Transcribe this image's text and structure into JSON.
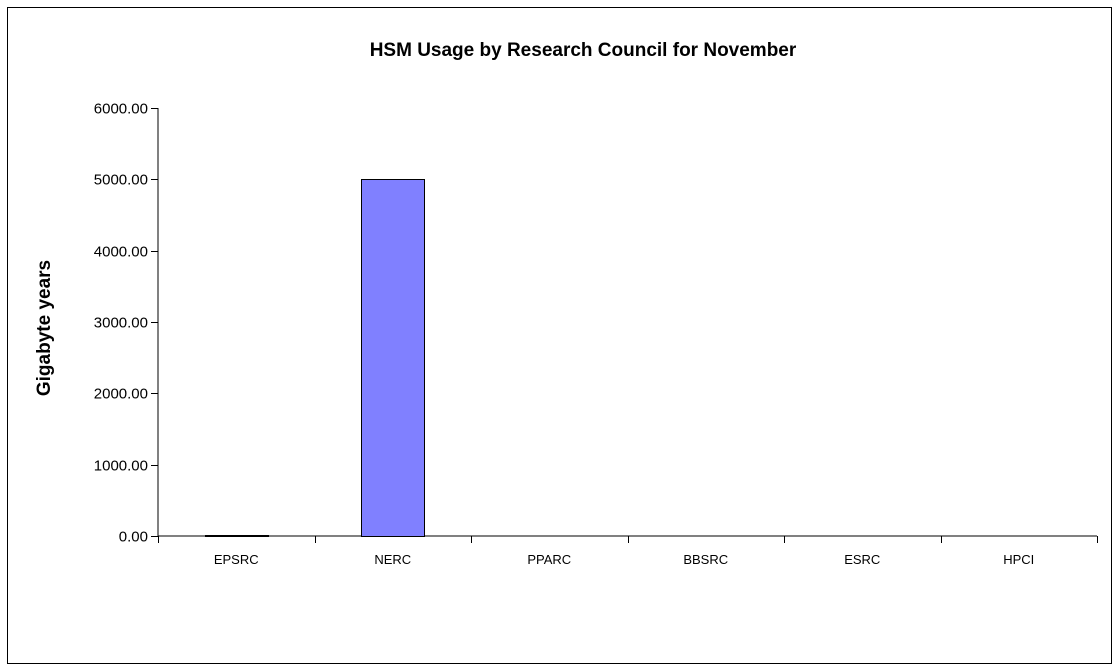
{
  "chart_data": {
    "type": "bar",
    "title": "HSM Usage by Research Council for November",
    "xlabel": "",
    "ylabel": "Gigabyte years",
    "categories": [
      "EPSRC",
      "NERC",
      "PPARC",
      "BBSRC",
      "ESRC",
      "HPCI"
    ],
    "values": [
      20,
      5000,
      0,
      0,
      0,
      0
    ],
    "ylim": [
      0,
      6000
    ],
    "yticks": [
      "0.00",
      "1000.00",
      "2000.00",
      "3000.00",
      "4000.00",
      "5000.00",
      "6000.00"
    ],
    "grid": false,
    "legend": "none",
    "bar_color": "#8080ff"
  }
}
